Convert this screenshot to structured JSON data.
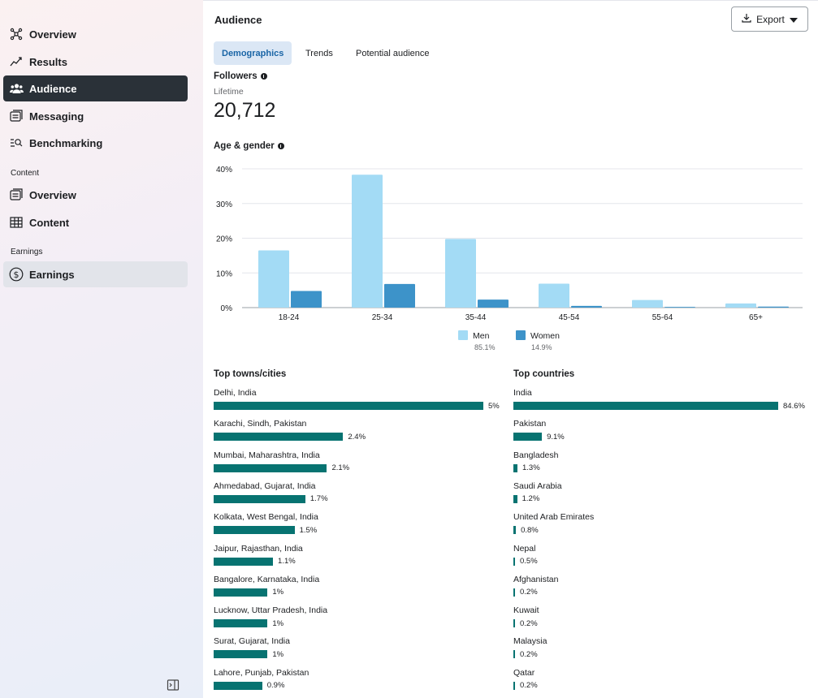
{
  "sidebar": {
    "items": [
      {
        "label": "Overview",
        "icon": "network-icon"
      },
      {
        "label": "Results",
        "icon": "trend-line-icon"
      },
      {
        "label": "Audience",
        "icon": "people-icon"
      },
      {
        "label": "Messaging",
        "icon": "inbox-icon"
      },
      {
        "label": "Benchmarking",
        "icon": "list-search-icon"
      }
    ],
    "content_section": "Content",
    "content_items": [
      {
        "label": "Overview",
        "icon": "inbox-icon"
      },
      {
        "label": "Content",
        "icon": "table-icon"
      }
    ],
    "earnings_section": "Earnings",
    "earnings_items": [
      {
        "label": "Earnings",
        "icon": "dollar-circle-icon"
      }
    ]
  },
  "header": {
    "title": "Audience",
    "export_label": "Export"
  },
  "tabs": [
    "Demographics",
    "Trends",
    "Potential audience"
  ],
  "followers": {
    "title": "Followers",
    "period": "Lifetime",
    "count": "20,712"
  },
  "age_gender": {
    "title": "Age & gender"
  },
  "chart_data": {
    "type": "bar",
    "categories": [
      "18-24",
      "25-34",
      "35-44",
      "45-54",
      "55-64",
      "65+"
    ],
    "series": [
      {
        "name": "Men",
        "values": [
          16.5,
          38.3,
          19.8,
          6.9,
          2.2,
          1.2
        ],
        "color": "#a3dbf5",
        "total": "85.1%"
      },
      {
        "name": "Women",
        "values": [
          4.8,
          6.8,
          2.3,
          0.5,
          0.2,
          0.3
        ],
        "color": "#3d93c9",
        "total": "14.9%"
      }
    ],
    "ylim": [
      0,
      40
    ],
    "yticks": [
      "0%",
      "10%",
      "20%",
      "30%",
      "40%"
    ],
    "grid": true,
    "legend": "bottom-center"
  },
  "top_cities": {
    "title": "Top towns/cities",
    "rows": [
      {
        "label": "Delhi, India",
        "value": "5%",
        "pct": 5
      },
      {
        "label": "Karachi, Sindh, Pakistan",
        "value": "2.4%",
        "pct": 2.4
      },
      {
        "label": "Mumbai, Maharashtra, India",
        "value": "2.1%",
        "pct": 2.1
      },
      {
        "label": "Ahmedabad, Gujarat, India",
        "value": "1.7%",
        "pct": 1.7
      },
      {
        "label": "Kolkata, West Bengal, India",
        "value": "1.5%",
        "pct": 1.5
      },
      {
        "label": "Jaipur, Rajasthan, India",
        "value": "1.1%",
        "pct": 1.1
      },
      {
        "label": "Bangalore, Karnataka, India",
        "value": "1%",
        "pct": 1
      },
      {
        "label": "Lucknow, Uttar Pradesh, India",
        "value": "1%",
        "pct": 1
      },
      {
        "label": "Surat, Gujarat, India",
        "value": "1%",
        "pct": 1
      },
      {
        "label": "Lahore, Punjab, Pakistan",
        "value": "0.9%",
        "pct": 0.9
      }
    ]
  },
  "top_countries": {
    "title": "Top countries",
    "rows": [
      {
        "label": "India",
        "value": "84.6%",
        "pct": 84.6
      },
      {
        "label": "Pakistan",
        "value": "9.1%",
        "pct": 9.1
      },
      {
        "label": "Bangladesh",
        "value": "1.3%",
        "pct": 1.3
      },
      {
        "label": "Saudi Arabia",
        "value": "1.2%",
        "pct": 1.2
      },
      {
        "label": "United Arab Emirates",
        "value": "0.8%",
        "pct": 0.8
      },
      {
        "label": "Nepal",
        "value": "0.5%",
        "pct": 0.5
      },
      {
        "label": "Afghanistan",
        "value": "0.2%",
        "pct": 0.2
      },
      {
        "label": "Kuwait",
        "value": "0.2%",
        "pct": 0.2
      },
      {
        "label": "Malaysia",
        "value": "0.2%",
        "pct": 0.2
      },
      {
        "label": "Qatar",
        "value": "0.2%",
        "pct": 0.2
      }
    ]
  }
}
